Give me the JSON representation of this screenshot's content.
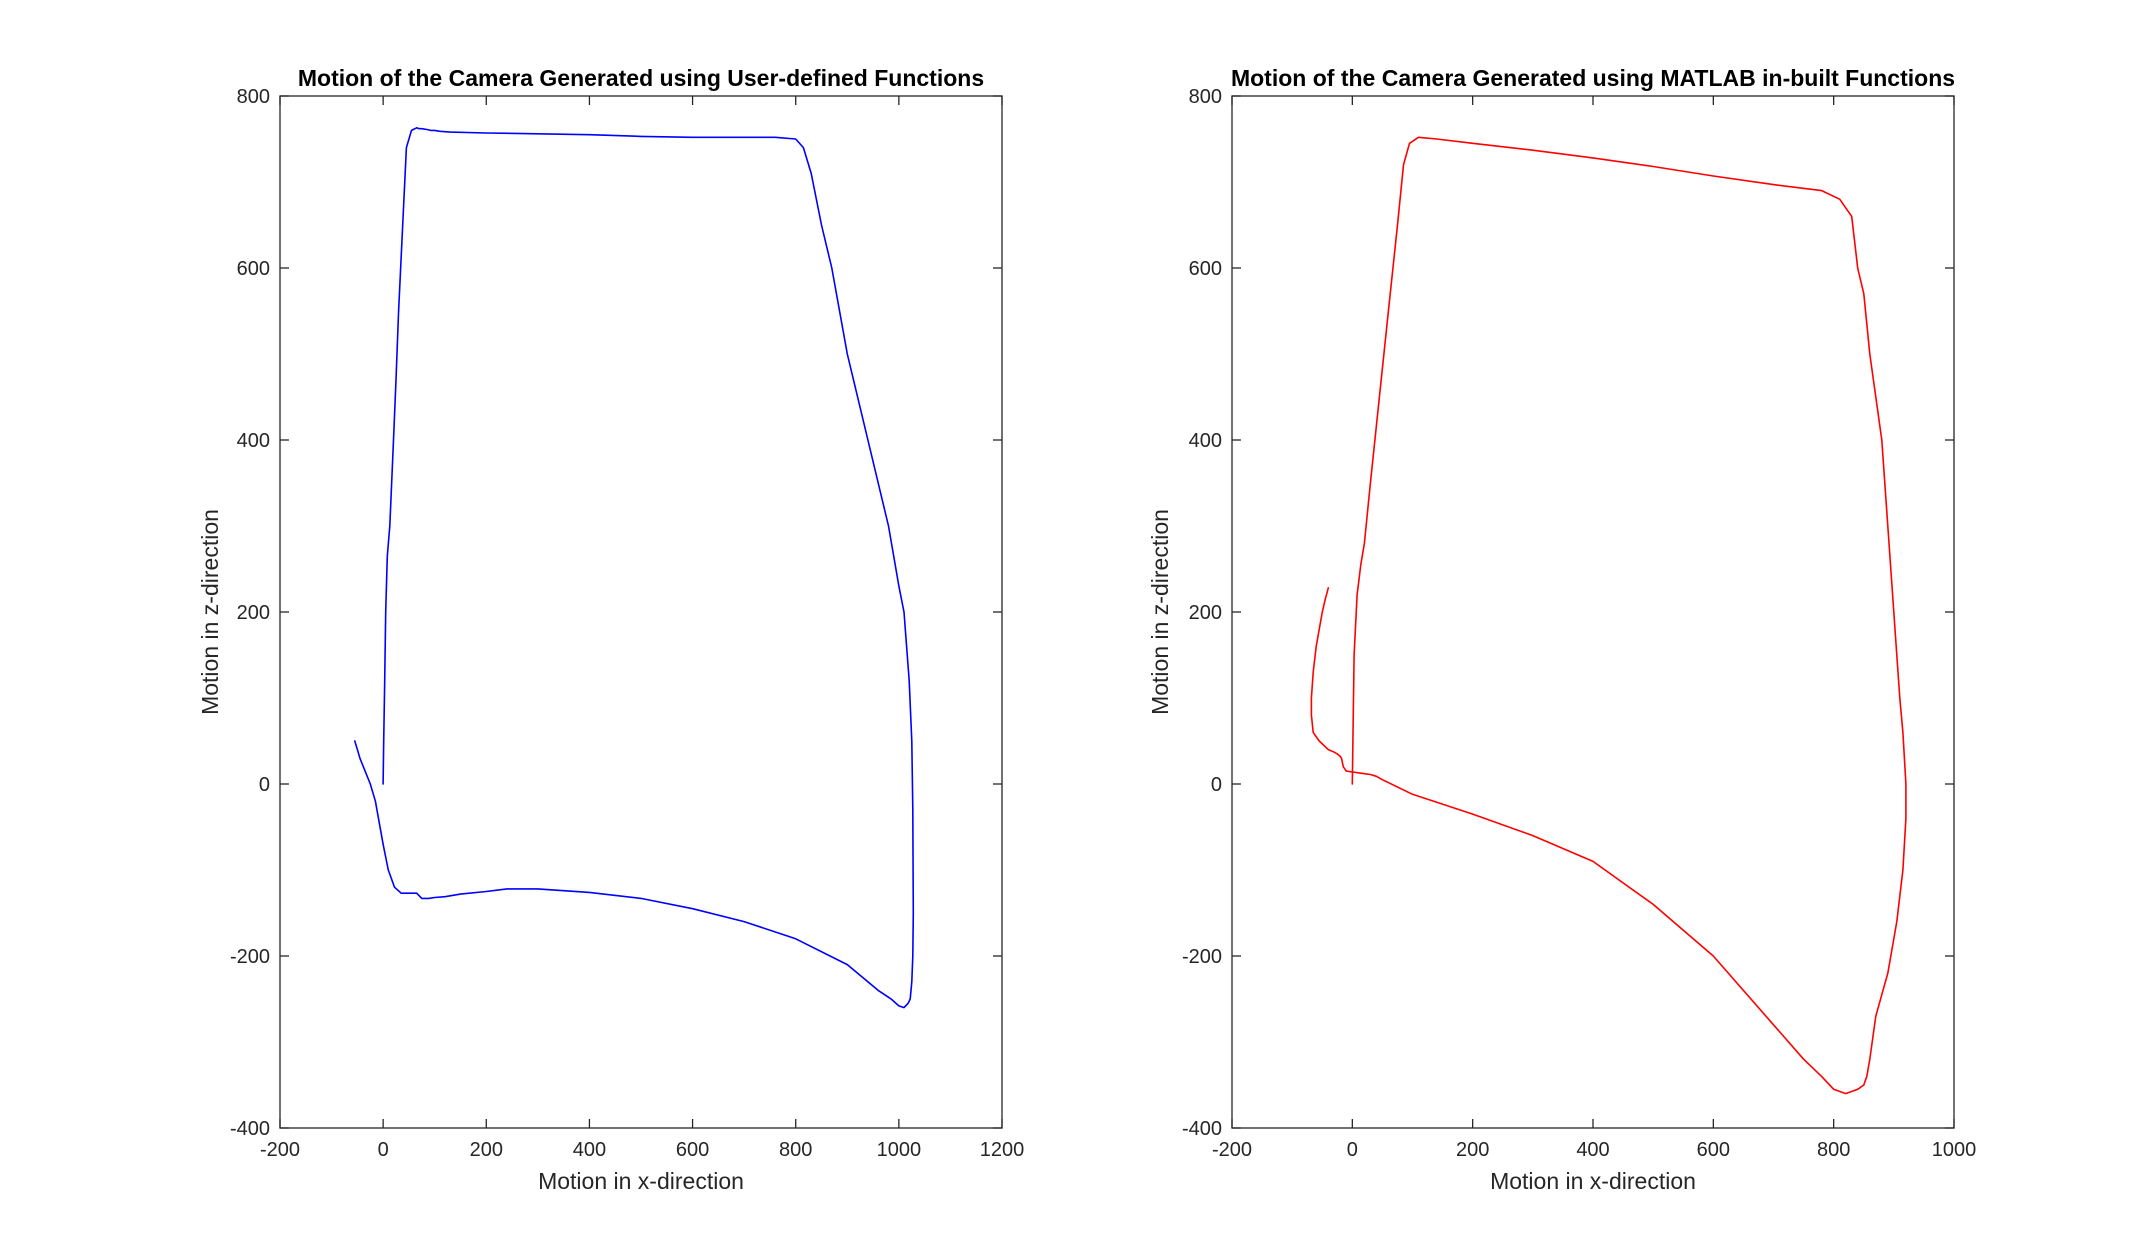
{
  "chart_data": [
    {
      "type": "line",
      "title": "Motion of the Camera Generated using User-defined Functions",
      "xlabel": "Motion in x-direction",
      "ylabel": "Motion in z-direction",
      "xlim": [
        -200,
        1200
      ],
      "ylim": [
        -400,
        800
      ],
      "xticks": [
        -200,
        0,
        200,
        400,
        600,
        800,
        1000,
        1200
      ],
      "yticks": [
        -400,
        -200,
        0,
        200,
        400,
        600,
        800
      ],
      "grid": false,
      "series": [
        {
          "color": "#0000ff",
          "x": [
            0,
            1,
            3,
            5,
            8,
            13,
            20,
            25,
            30,
            38,
            45,
            55,
            65,
            70,
            75,
            85,
            92,
            100,
            110,
            130,
            200,
            300,
            400,
            500,
            600,
            660,
            700,
            760,
            800,
            815,
            830,
            850,
            870,
            900,
            940,
            980,
            1000,
            1010,
            1020,
            1025,
            1027,
            1028,
            1027,
            1025,
            1022,
            1018,
            1010,
            1000,
            985,
            960,
            900,
            800,
            700,
            600,
            500,
            400,
            300,
            240,
            200,
            150,
            120,
            100,
            88,
            82,
            75,
            65,
            50,
            35,
            22,
            10,
            0,
            -15,
            -25,
            -35,
            -45,
            -50,
            -55
          ],
          "y": [
            0,
            50,
            120,
            200,
            265,
            300,
            400,
            470,
            550,
            650,
            740,
            760,
            763,
            762,
            762,
            761,
            760,
            760,
            759,
            758,
            757,
            756,
            755,
            753,
            752,
            752,
            752,
            752,
            750,
            740,
            710,
            650,
            600,
            500,
            400,
            300,
            230,
            200,
            120,
            50,
            -30,
            -150,
            -200,
            -230,
            -250,
            -255,
            -260,
            -258,
            -250,
            -240,
            -210,
            -180,
            -160,
            -145,
            -133,
            -126,
            -122,
            -122,
            -125,
            -128,
            -131,
            -132,
            -133,
            -133,
            -133,
            -127,
            -127,
            -127,
            -120,
            -100,
            -70,
            -20,
            0,
            15,
            30,
            40,
            50
          ]
        }
      ]
    },
    {
      "type": "line",
      "title": "Motion of the Camera Generated using MATLAB in-built Functions",
      "xlabel": "Motion in x-direction",
      "ylabel": "Motion in z-direction",
      "xlim": [
        -200,
        1000
      ],
      "ylim": [
        -400,
        800
      ],
      "xticks": [
        -200,
        0,
        200,
        400,
        600,
        800,
        1000
      ],
      "yticks": [
        -400,
        -200,
        0,
        200,
        400,
        600,
        800
      ],
      "grid": false,
      "series": [
        {
          "color": "#ff0000",
          "x": [
            0,
            1,
            3,
            8,
            14,
            20,
            30,
            45,
            60,
            75,
            85,
            95,
            110,
            140,
            200,
            300,
            400,
            500,
            600,
            700,
            780,
            810,
            830,
            840,
            850,
            860,
            870,
            880,
            890,
            900,
            910,
            915,
            920,
            920,
            915,
            905,
            890,
            870,
            860,
            855,
            850,
            840,
            820,
            800,
            780,
            750,
            700,
            600,
            500,
            400,
            300,
            200,
            100,
            50,
            40,
            30,
            20,
            10,
            0,
            -10,
            -15,
            -18,
            -20,
            -25,
            -30,
            -40,
            -55,
            -65,
            -68,
            -68,
            -65,
            -60,
            -50,
            -45,
            -40
          ],
          "y": [
            0,
            50,
            150,
            220,
            255,
            280,
            350,
            450,
            550,
            650,
            720,
            745,
            752,
            750,
            745,
            737,
            728,
            718,
            707,
            697,
            690,
            680,
            660,
            600,
            570,
            500,
            450,
            400,
            300,
            200,
            100,
            60,
            0,
            -40,
            -100,
            -160,
            -220,
            -270,
            -320,
            -340,
            -350,
            -355,
            -360,
            -355,
            -340,
            -320,
            -280,
            -200,
            -140,
            -90,
            -60,
            -35,
            -12,
            5,
            9,
            11,
            12,
            13,
            14,
            15,
            20,
            30,
            32,
            35,
            37,
            40,
            50,
            60,
            80,
            100,
            130,
            160,
            200,
            215,
            228
          ]
        }
      ]
    }
  ]
}
